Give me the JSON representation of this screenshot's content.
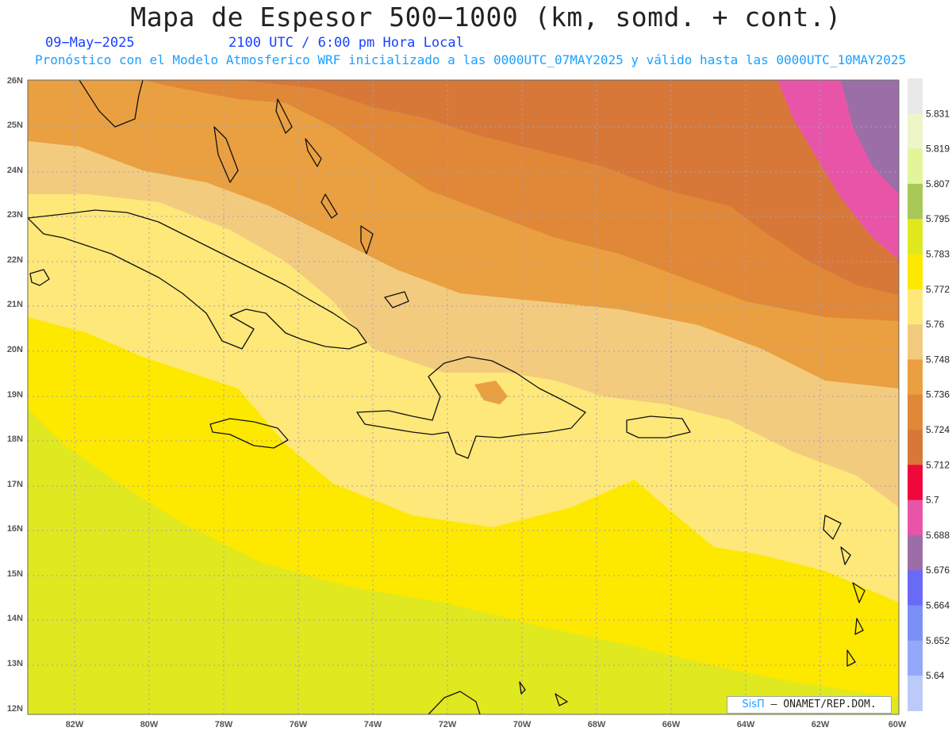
{
  "title": "Mapa de Espesor 500−1000 (km, somd. + cont.)",
  "date": "09−May−2025",
  "time": "2100 UTC / 6:00 pm Hora Local",
  "forecast": "Pronóstico con el Modelo Atmosferico WRF inicializado a las 0000UTC_07MAY2025 y válido hasta las  0000UTC_10MAY2025",
  "credit": {
    "logo": "SisΠ",
    "text": "– ONAMET/REP.DOM."
  },
  "map": {
    "lon_range": [
      -83.2,
      -59.9
    ],
    "lat_range": [
      11.9,
      26.2
    ],
    "lon_ticks": [
      "82W",
      "80W",
      "78W",
      "76W",
      "74W",
      "72W",
      "70W",
      "68W",
      "66W",
      "64W",
      "62W",
      "60W"
    ],
    "lat_ticks": [
      "26N",
      "25N",
      "24N",
      "23N",
      "22N",
      "21N",
      "20N",
      "19N",
      "18N",
      "17N",
      "16N",
      "15N",
      "14N",
      "13N",
      "12N"
    ]
  },
  "legend": {
    "labels": [
      "5.831",
      "5.819",
      "5.807",
      "5.795",
      "5.783",
      "5.772",
      "5.76",
      "5.748",
      "5.736",
      "5.724",
      "5.712",
      "5.7",
      "5.688",
      "5.676",
      "5.664",
      "5.652",
      "5.64"
    ],
    "colors": [
      "#e8e8e8",
      "#eef5c8",
      "#e2f59a",
      "#a8c858",
      "#e0e820",
      "#fde800",
      "#fee87a",
      "#f3cb7e",
      "#eaa040",
      "#e08838",
      "#d87838",
      "#f0083c",
      "#e855a8",
      "#9c6ea8",
      "#6a6af8",
      "#7a90f8",
      "#93a8f8",
      "#bbcaf8"
    ]
  },
  "contour_colors": {
    "band_05": "#d87838",
    "band_04": "#e08838",
    "band_03": "#eaa040",
    "band_02": "#f3cb7e",
    "band_01": "#fee87a",
    "band_00": "#fde800",
    "band_m1": "#e0e820",
    "red": "#f0083c",
    "pink": "#e855a8",
    "purple": "#9c6ea8"
  }
}
